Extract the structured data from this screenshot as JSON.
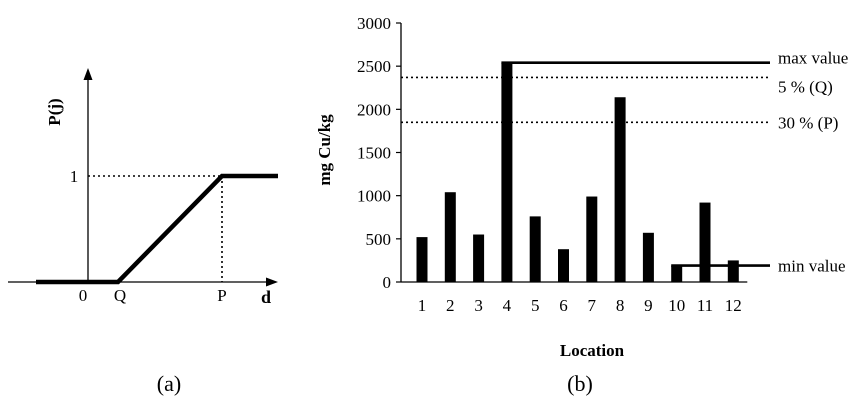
{
  "panel_a": {
    "caption": "(a)",
    "ylabel": "P(j)",
    "xlabel": "d",
    "y_tick": "1",
    "x_ticks": [
      "0",
      "Q",
      "P"
    ]
  },
  "panel_b": {
    "caption": "(b)"
  },
  "chart_data": [
    {
      "type": "line",
      "title": "",
      "xlabel": "d",
      "ylabel": "P(j)",
      "x_ticks": [
        "0",
        "Q",
        "P"
      ],
      "y_ticks": [
        "1"
      ],
      "series": [
        {
          "points": [
            [
              "start",
              0
            ],
            [
              "Q",
              0
            ],
            [
              "P",
              1
            ],
            [
              "end",
              1
            ]
          ]
        }
      ],
      "reference_lines": [
        "dotted line at P(j)=1",
        "dotted line at d=P"
      ]
    },
    {
      "type": "bar",
      "title": "",
      "xlabel": "Location",
      "ylabel": "mg Cu/kg",
      "categories": [
        "1",
        "2",
        "3",
        "4",
        "5",
        "6",
        "7",
        "8",
        "9",
        "10",
        "11",
        "12"
      ],
      "values": [
        520,
        1040,
        550,
        2540,
        760,
        380,
        990,
        2140,
        570,
        190,
        920,
        250
      ],
      "ylim": [
        0,
        3000
      ],
      "y_ticks": [
        0,
        500,
        1000,
        1500,
        2000,
        2500,
        3000
      ],
      "grid": false,
      "reference_lines": [
        {
          "label": "max value",
          "value": 2540,
          "style": "solid"
        },
        {
          "label": "5 % (Q)",
          "value": 2370,
          "style": "dotted"
        },
        {
          "label": "30 % (P)",
          "value": 1850,
          "style": "dotted"
        },
        {
          "label": "min value",
          "value": 190,
          "style": "solid"
        }
      ]
    }
  ]
}
